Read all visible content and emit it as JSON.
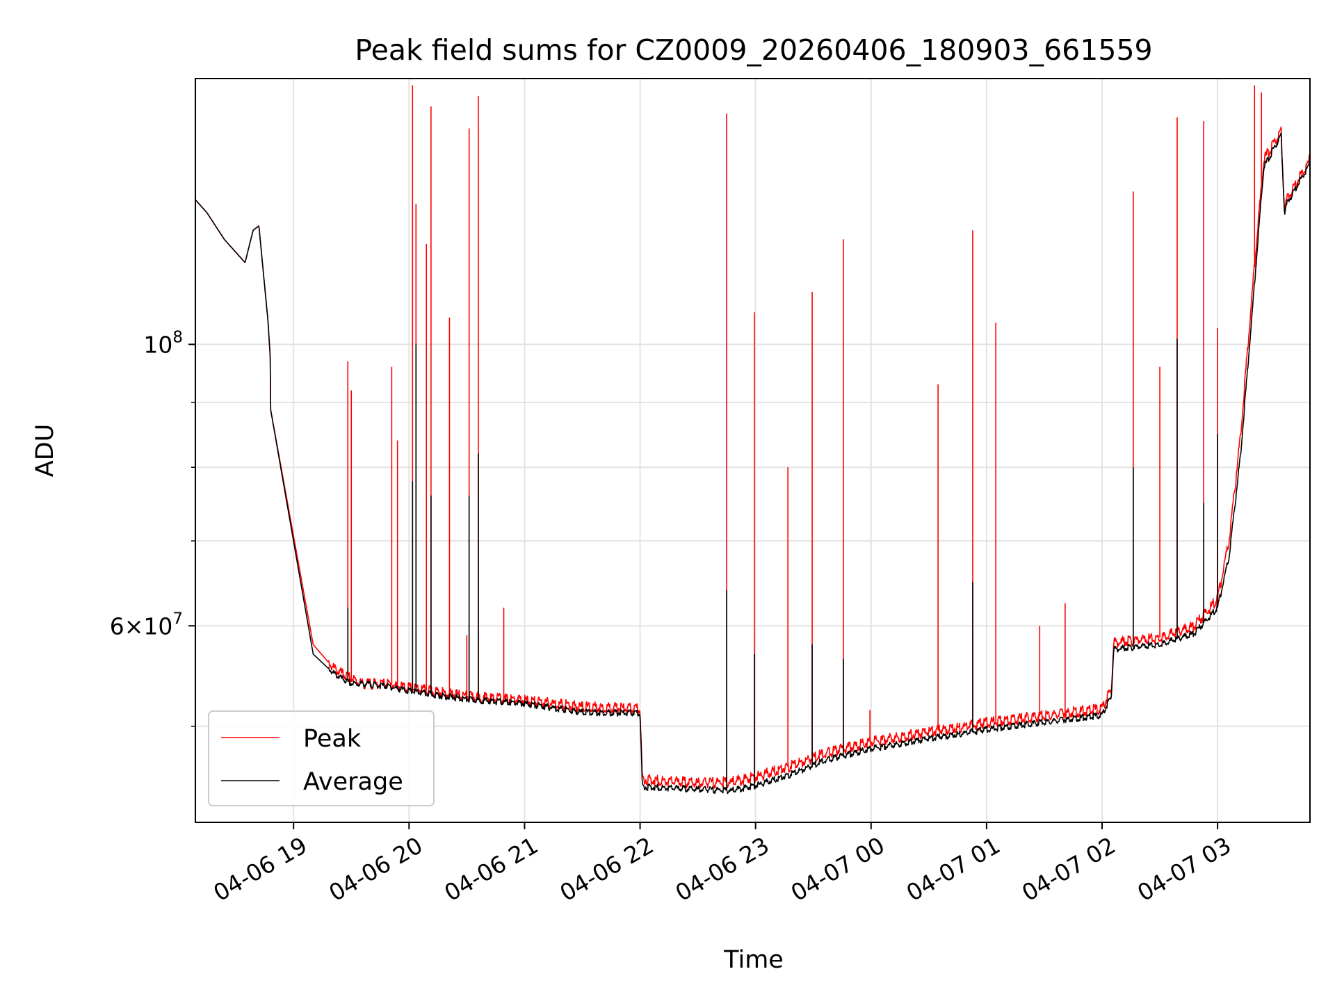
{
  "chart_data": {
    "type": "line",
    "title": "Peak field sums for CZ0009_20260406_180903_661559",
    "xlabel": "Time",
    "ylabel": "ADU",
    "y_scale": "log",
    "ylim": [
      42000000,
      162000000
    ],
    "xlim": [
      -0.85,
      8.8
    ],
    "x_unit": "hours since 04-06 19:00",
    "grid": true,
    "legend_position": "lower-left",
    "x_ticks": [
      {
        "value": 0,
        "label": "04-06 19"
      },
      {
        "value": 1,
        "label": "04-06 20"
      },
      {
        "value": 2,
        "label": "04-06 21"
      },
      {
        "value": 3,
        "label": "04-06 22"
      },
      {
        "value": 4,
        "label": "04-06 23"
      },
      {
        "value": 5,
        "label": "04-07 00"
      },
      {
        "value": 6,
        "label": "04-07 01"
      },
      {
        "value": 7,
        "label": "04-07 02"
      },
      {
        "value": 8,
        "label": "04-07 03"
      }
    ],
    "y_major_ticks": [
      {
        "value": 100000000,
        "base": "10",
        "exp": "8",
        "coef": ""
      },
      {
        "value": 60000000,
        "base": "10",
        "exp": "7",
        "coef": "6×"
      }
    ],
    "y_minor_ticks": [
      50000000,
      70000000,
      80000000,
      90000000
    ],
    "series": [
      {
        "name": "Peak",
        "color": "#ff0000",
        "baseline": [
          [
            -0.85,
            130000000
          ],
          [
            -0.75,
            127000000
          ],
          [
            -0.6,
            121000000
          ],
          [
            -0.42,
            116000000
          ],
          [
            -0.35,
            123000000
          ],
          [
            -0.3,
            124000000
          ],
          [
            -0.22,
            104000000
          ],
          [
            -0.2,
            97000000
          ],
          [
            -0.2,
            89000000
          ],
          [
            0.17,
            58000000
          ],
          [
            0.35,
            55500000
          ],
          [
            0.45,
            54800000
          ],
          [
            0.5,
            54500000
          ],
          [
            0.6,
            54000000
          ],
          [
            0.8,
            54000000
          ],
          [
            1.0,
            53600000
          ],
          [
            1.5,
            52800000
          ],
          [
            2.0,
            52400000
          ],
          [
            2.5,
            51800000
          ],
          [
            3.0,
            51600000
          ],
          [
            3.02,
            45400000
          ],
          [
            3.5,
            45100000
          ],
          [
            3.8,
            45200000
          ],
          [
            4.0,
            45600000
          ],
          [
            4.3,
            46500000
          ],
          [
            4.6,
            47600000
          ],
          [
            5.0,
            48600000
          ],
          [
            5.5,
            49500000
          ],
          [
            6.0,
            50300000
          ],
          [
            6.5,
            51000000
          ],
          [
            7.0,
            51600000
          ],
          [
            7.08,
            53500000
          ],
          [
            7.1,
            58200000
          ],
          [
            7.5,
            58700000
          ],
          [
            7.8,
            60000000
          ],
          [
            8.0,
            63000000
          ],
          [
            8.1,
            70000000
          ],
          [
            8.2,
            85000000
          ],
          [
            8.3,
            110000000
          ],
          [
            8.4,
            140000000
          ],
          [
            8.55,
            147000000
          ],
          [
            8.58,
            128000000
          ],
          [
            8.6,
            130000000
          ],
          [
            8.8,
            140000000
          ]
        ],
        "spikes": [
          [
            0.47,
            97000000
          ],
          [
            0.5,
            92000000
          ],
          [
            0.85,
            96000000
          ],
          [
            0.9,
            84000000
          ],
          [
            1.03,
            160000000
          ],
          [
            1.06,
            129000000
          ],
          [
            1.15,
            120000000
          ],
          [
            1.19,
            154000000
          ],
          [
            1.35,
            105000000
          ],
          [
            1.5,
            59000000
          ],
          [
            1.52,
            148000000
          ],
          [
            1.6,
            157000000
          ],
          [
            1.82,
            62000000
          ],
          [
            3.75,
            152000000
          ],
          [
            3.99,
            106000000
          ],
          [
            4.28,
            80000000
          ],
          [
            4.49,
            110000000
          ],
          [
            4.76,
            121000000
          ],
          [
            4.99,
            51500000
          ],
          [
            5.58,
            93000000
          ],
          [
            5.88,
            123000000
          ],
          [
            6.08,
            104000000
          ],
          [
            6.46,
            60000000
          ],
          [
            6.68,
            62500000
          ],
          [
            7.27,
            132000000
          ],
          [
            7.5,
            96000000
          ],
          [
            7.65,
            151000000
          ],
          [
            7.88,
            150000000
          ],
          [
            8.0,
            103000000
          ],
          [
            8.32,
            160000000
          ],
          [
            8.38,
            158000000
          ]
        ]
      },
      {
        "name": "Average",
        "color": "#000000",
        "baseline": [
          [
            -0.85,
            130000000
          ],
          [
            -0.75,
            127000000
          ],
          [
            -0.6,
            121000000
          ],
          [
            -0.42,
            116000000
          ],
          [
            -0.35,
            123000000
          ],
          [
            -0.3,
            124000000
          ],
          [
            -0.22,
            104000000
          ],
          [
            -0.2,
            97000000
          ],
          [
            -0.2,
            89000000
          ],
          [
            0.17,
            57000000
          ],
          [
            0.35,
            55000000
          ],
          [
            0.45,
            54300000
          ],
          [
            0.5,
            54000000
          ],
          [
            0.6,
            54000000
          ],
          [
            0.8,
            53800000
          ],
          [
            1.0,
            53300000
          ],
          [
            1.5,
            52500000
          ],
          [
            2.0,
            52100000
          ],
          [
            2.5,
            51300000
          ],
          [
            3.0,
            51200000
          ],
          [
            3.02,
            44800000
          ],
          [
            3.5,
            44600000
          ],
          [
            3.8,
            44500000
          ],
          [
            4.0,
            44900000
          ],
          [
            4.3,
            45800000
          ],
          [
            4.6,
            47000000
          ],
          [
            5.0,
            48000000
          ],
          [
            5.5,
            48900000
          ],
          [
            6.0,
            49700000
          ],
          [
            6.5,
            50400000
          ],
          [
            7.0,
            51000000
          ],
          [
            7.08,
            52800000
          ],
          [
            7.1,
            57500000
          ],
          [
            7.5,
            58000000
          ],
          [
            7.8,
            59200000
          ],
          [
            8.0,
            62000000
          ],
          [
            8.1,
            68000000
          ],
          [
            8.2,
            82000000
          ],
          [
            8.3,
            106000000
          ],
          [
            8.4,
            138000000
          ],
          [
            8.55,
            146000000
          ],
          [
            8.58,
            127000000
          ],
          [
            8.6,
            129000000
          ],
          [
            8.8,
            139000000
          ]
        ],
        "spikes": [
          [
            0.47,
            62000000
          ],
          [
            1.03,
            78000000
          ],
          [
            1.06,
            100000000
          ],
          [
            1.19,
            76000000
          ],
          [
            1.52,
            76000000
          ],
          [
            1.6,
            82000000
          ],
          [
            3.75,
            64000000
          ],
          [
            3.99,
            57000000
          ],
          [
            4.49,
            58000000
          ],
          [
            4.76,
            56500000
          ],
          [
            5.88,
            65000000
          ],
          [
            7.27,
            80000000
          ],
          [
            7.65,
            101000000
          ],
          [
            7.88,
            75000000
          ],
          [
            8.0,
            85000000
          ]
        ]
      }
    ]
  }
}
